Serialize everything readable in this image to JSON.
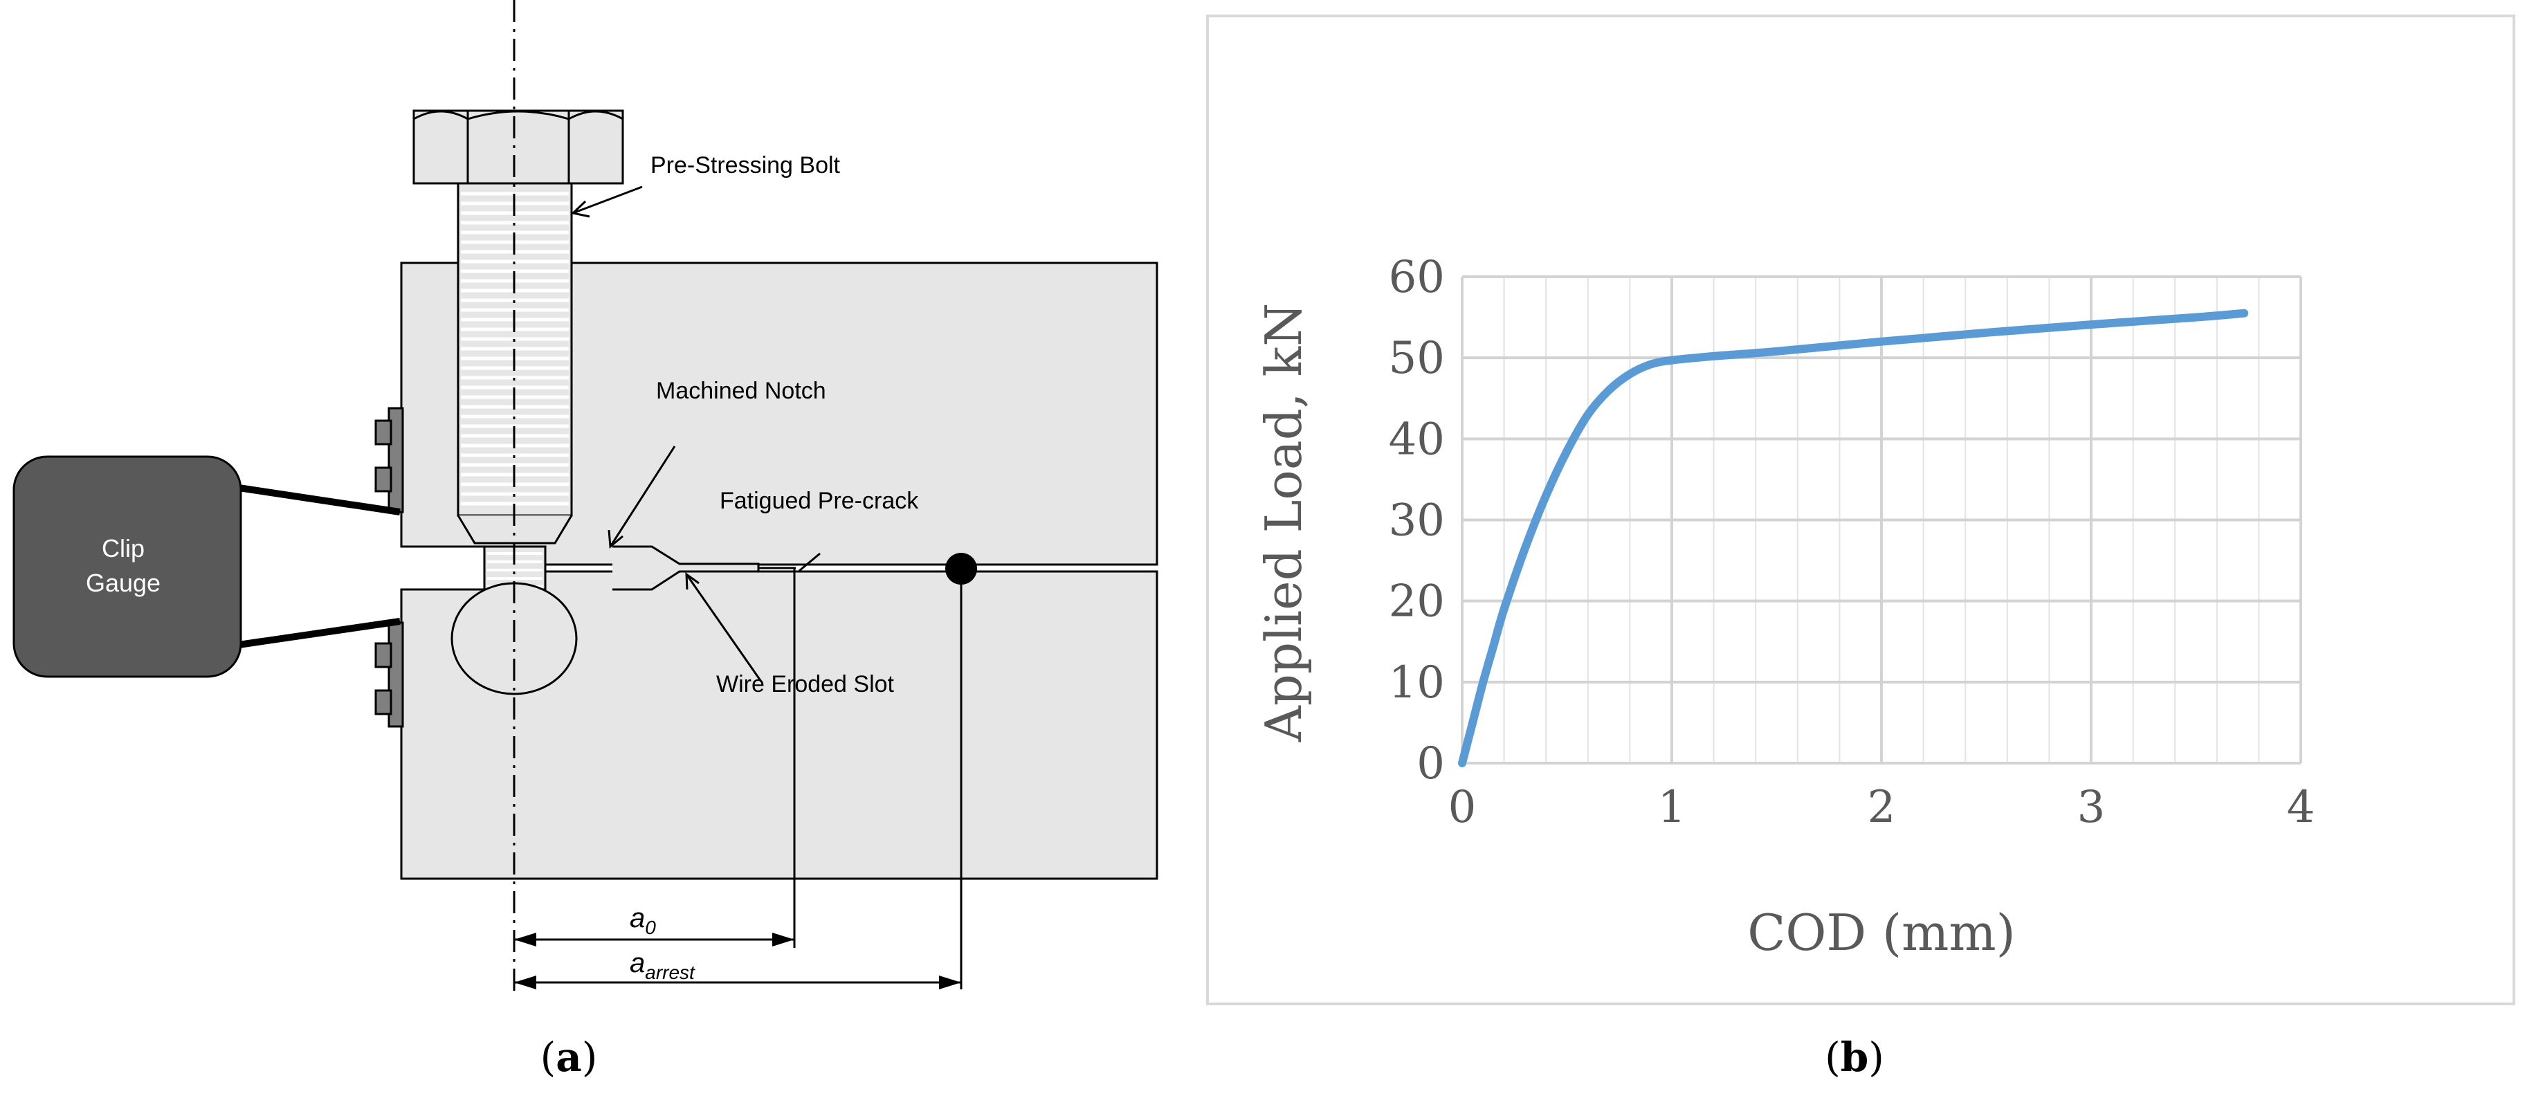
{
  "panel_a": {
    "caption_letter": "a",
    "labels": {
      "bolt": "Pre-Stressing Bolt",
      "notch": "Machined Notch",
      "precrack": "Fatigued Pre-crack",
      "slot": "Wire Eroded Slot",
      "clip_gauge_line1": "Clip",
      "clip_gauge_line2": "Gauge"
    },
    "dimensions": {
      "a0_base": "a",
      "a0_sub": "0",
      "aarrest_base": "a",
      "aarrest_sub": "arrest"
    },
    "colors": {
      "specimen_fill": "#e6e6e6",
      "clip_gauge_fill": "#595959",
      "outline": "#000000"
    }
  },
  "panel_b": {
    "caption_letter": "b",
    "chart_data": {
      "type": "line",
      "title": "",
      "xlabel": "COD (mm)",
      "ylabel": "Applied Load, kN",
      "xlim": [
        0,
        4
      ],
      "ylim": [
        0,
        60
      ],
      "xticks": [
        "0",
        "1",
        "2",
        "3",
        "4"
      ],
      "yticks": [
        "0",
        "10",
        "20",
        "30",
        "40",
        "50",
        "60"
      ],
      "grid": true,
      "series": [
        {
          "color": "#5b9bd5",
          "x": [
            0,
            0.05,
            0.1,
            0.15,
            0.2,
            0.3,
            0.4,
            0.5,
            0.6,
            0.7,
            0.8,
            0.9,
            1.0,
            1.2,
            1.5,
            2.0,
            2.5,
            3.0,
            3.5,
            3.73
          ],
          "y": [
            0,
            5,
            10,
            14.5,
            19,
            26.5,
            33,
            38.5,
            43,
            46,
            48,
            49.2,
            49.7,
            50.2,
            50.8,
            52.0,
            53.1,
            54.1,
            55.0,
            55.5
          ]
        }
      ]
    },
    "colors": {
      "frame": "#d9d9d9",
      "grid": "#d9d9d9",
      "text": "#595959"
    }
  }
}
